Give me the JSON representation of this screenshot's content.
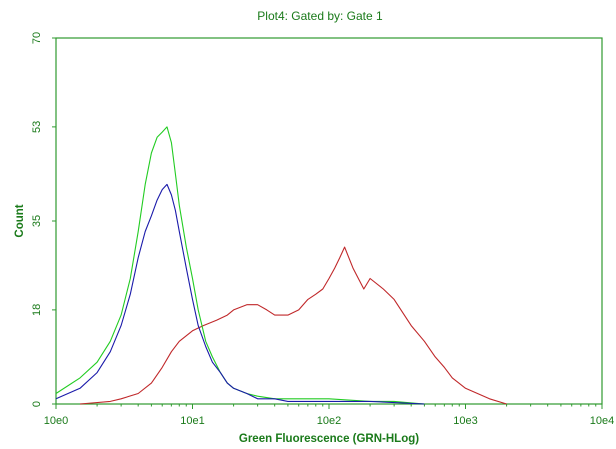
{
  "chart_data": {
    "type": "line",
    "title": "Plot4:  Gated by: Gate 1",
    "xlabel": "Green Fluorescence (GRN-HLog)",
    "ylabel": "Count",
    "x_scale": "log",
    "xlim": [
      1,
      10000
    ],
    "ylim": [
      0,
      70
    ],
    "x_ticks": [
      1,
      10,
      100,
      1000,
      10000
    ],
    "x_tick_labels": [
      "10e0",
      "10e1",
      "10e2",
      "10e3",
      "10e4"
    ],
    "y_ticks": [
      0,
      18,
      35,
      53,
      70
    ],
    "y_tick_labels": [
      "0",
      "18",
      "35",
      "53",
      "70"
    ],
    "grid": false,
    "legend": "none",
    "series": [
      {
        "color": "#22cc22",
        "x": [
          1.0,
          1.5,
          2.0,
          2.5,
          3.0,
          3.5,
          4.0,
          4.5,
          5.0,
          5.5,
          6.0,
          6.5,
          7.0,
          7.5,
          8.0,
          9.0,
          10.0,
          11.0,
          12.5,
          14.0,
          16.0,
          18.0,
          20.0,
          25.0,
          30.0,
          40.0,
          50.0,
          70.0,
          100.0,
          200.0,
          300.0,
          500.0
        ],
        "y": [
          2,
          5,
          8,
          12,
          17,
          24,
          33,
          42,
          48,
          51,
          52,
          53,
          50,
          44,
          38,
          30,
          24,
          18,
          12,
          9,
          6,
          4,
          3,
          2,
          1.5,
          1,
          1,
          1,
          1,
          0.5,
          0.5,
          0
        ]
      },
      {
        "color": "#1a1aaa",
        "x": [
          1.0,
          1.5,
          2.0,
          2.5,
          3.0,
          3.5,
          4.0,
          4.5,
          5.0,
          5.5,
          6.0,
          6.5,
          7.0,
          7.5,
          8.0,
          9.0,
          10.0,
          11.0,
          12.5,
          14.0,
          16.0,
          18.0,
          20.0,
          25.0,
          30.0,
          40.0,
          50.0,
          70.0,
          100.0,
          200.0,
          500.0
        ],
        "y": [
          1,
          3,
          6,
          10,
          15,
          21,
          28,
          33,
          36,
          39,
          41,
          42,
          40,
          37,
          33,
          26,
          20,
          15,
          11,
          8,
          6,
          4,
          3,
          2,
          1,
          1,
          0.5,
          0.5,
          0.5,
          0.5,
          0
        ]
      },
      {
        "color": "#c0282a",
        "x": [
          1.5,
          2.5,
          3.0,
          4.0,
          5.0,
          6.0,
          7.0,
          8.0,
          10.0,
          12.0,
          15.0,
          18.0,
          20.0,
          25.0,
          30.0,
          35.0,
          40.0,
          50.0,
          60.0,
          70.0,
          80.0,
          90.0,
          100.0,
          110.0,
          120.0,
          130.0,
          150.0,
          180.0,
          200.0,
          250.0,
          300.0,
          400.0,
          500.0,
          600.0,
          700.0,
          800.0,
          1000.0,
          1500.0,
          2000.0
        ],
        "y": [
          0,
          0.5,
          1,
          2,
          4,
          7,
          10,
          12,
          14,
          15,
          16,
          17,
          18,
          19,
          19,
          18,
          17,
          17,
          18,
          20,
          21,
          22,
          24,
          26,
          28,
          30,
          26,
          22,
          24,
          22,
          20,
          15,
          12,
          9,
          7,
          5,
          3,
          1,
          0
        ]
      }
    ]
  }
}
